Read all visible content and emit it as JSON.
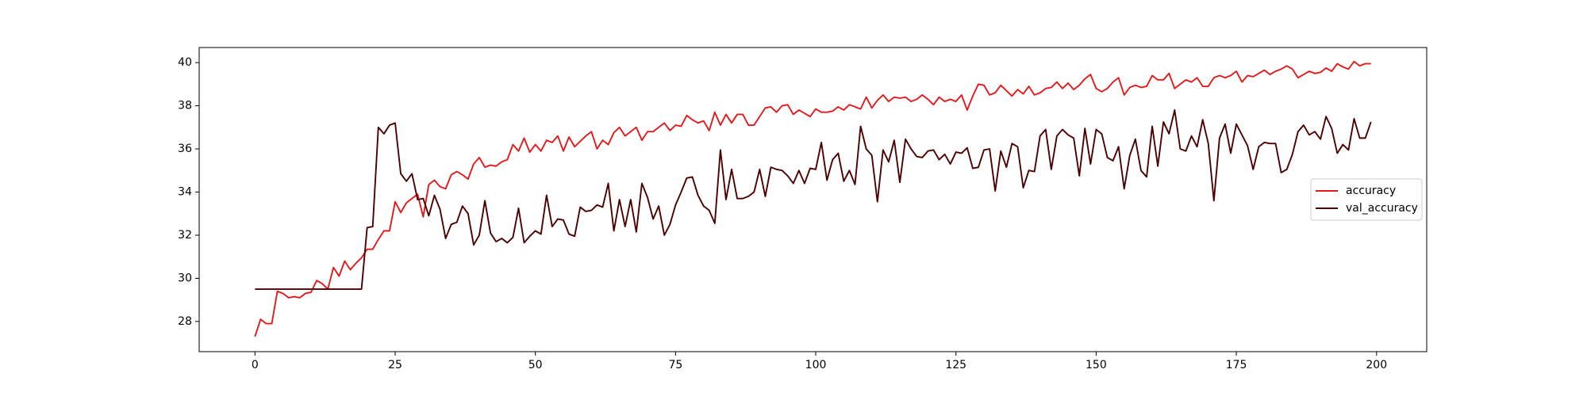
{
  "chart_data": {
    "type": "line",
    "x": [
      0,
      1,
      2,
      3,
      4,
      5,
      6,
      7,
      8,
      9,
      10,
      11,
      12,
      13,
      14,
      15,
      16,
      17,
      18,
      19,
      20,
      21,
      22,
      23,
      24,
      25,
      26,
      27,
      28,
      29,
      30,
      31,
      32,
      33,
      34,
      35,
      36,
      37,
      38,
      39,
      40,
      41,
      42,
      43,
      44,
      45,
      46,
      47,
      48,
      49,
      50,
      51,
      52,
      53,
      54,
      55,
      56,
      57,
      58,
      59,
      60,
      61,
      62,
      63,
      64,
      65,
      66,
      67,
      68,
      69,
      70,
      71,
      72,
      73,
      74,
      75,
      76,
      77,
      78,
      79,
      80,
      81,
      82,
      83,
      84,
      85,
      86,
      87,
      88,
      89,
      90,
      91,
      92,
      93,
      94,
      95,
      96,
      97,
      98,
      99,
      100,
      101,
      102,
      103,
      104,
      105,
      106,
      107,
      108,
      109,
      110,
      111,
      112,
      113,
      114,
      115,
      116,
      117,
      118,
      119,
      120,
      121,
      122,
      123,
      124,
      125,
      126,
      127,
      128,
      129,
      130,
      131,
      132,
      133,
      134,
      135,
      136,
      137,
      138,
      139,
      140,
      141,
      142,
      143,
      144,
      145,
      146,
      147,
      148,
      149,
      150,
      151,
      152,
      153,
      154,
      155,
      156,
      157,
      158,
      159,
      160,
      161,
      162,
      163,
      164,
      165,
      166,
      167,
      168,
      169,
      170,
      171,
      172,
      173,
      174,
      175,
      176,
      177,
      178,
      179,
      180,
      181,
      182,
      183,
      184,
      185,
      186,
      187,
      188,
      189,
      190,
      191,
      192,
      193,
      194,
      195,
      196,
      197,
      198,
      199
    ],
    "series": [
      {
        "name": "accuracy",
        "color": "#e31a1c",
        "values": [
          27.3,
          28.1,
          27.9,
          27.9,
          29.4,
          29.3,
          29.1,
          29.15,
          29.1,
          29.3,
          29.35,
          29.9,
          29.75,
          29.5,
          30.5,
          30.1,
          30.8,
          30.4,
          30.7,
          30.95,
          31.35,
          31.35,
          31.8,
          32.2,
          32.2,
          33.55,
          33.05,
          33.5,
          33.7,
          33.9,
          32.85,
          34.35,
          34.55,
          34.25,
          34.15,
          34.8,
          34.95,
          34.8,
          34.6,
          35.3,
          35.6,
          35.15,
          35.25,
          35.2,
          35.4,
          35.5,
          36.2,
          35.9,
          36.5,
          35.85,
          36.2,
          35.9,
          36.4,
          36.3,
          36.6,
          35.9,
          36.55,
          36.1,
          36.35,
          36.6,
          36.8,
          36.0,
          36.4,
          36.2,
          36.75,
          37.0,
          36.6,
          36.8,
          37.0,
          36.4,
          36.8,
          36.8,
          37.0,
          37.2,
          36.85,
          37.1,
          37.05,
          37.55,
          37.35,
          37.2,
          37.3,
          36.85,
          37.7,
          37.1,
          37.6,
          37.2,
          37.6,
          37.6,
          37.1,
          37.1,
          37.5,
          37.9,
          37.95,
          37.7,
          38.0,
          38.05,
          37.6,
          37.8,
          37.65,
          37.5,
          37.85,
          37.7,
          37.7,
          37.75,
          37.95,
          37.8,
          38.05,
          37.95,
          37.85,
          38.4,
          37.9,
          38.25,
          38.5,
          38.2,
          38.4,
          38.35,
          38.4,
          38.2,
          38.3,
          38.5,
          38.3,
          38.05,
          38.4,
          38.2,
          38.3,
          38.2,
          38.5,
          37.8,
          38.45,
          39.0,
          38.95,
          38.5,
          38.6,
          38.95,
          38.7,
          38.45,
          38.75,
          38.55,
          38.9,
          38.5,
          38.6,
          38.8,
          38.85,
          39.1,
          38.8,
          39.05,
          38.75,
          38.95,
          39.25,
          39.45,
          38.8,
          38.65,
          38.8,
          39.1,
          39.3,
          38.5,
          38.85,
          38.95,
          38.85,
          38.9,
          39.4,
          39.2,
          39.2,
          39.5,
          38.8,
          39.0,
          39.2,
          39.1,
          39.3,
          38.9,
          38.9,
          39.3,
          39.4,
          39.3,
          39.4,
          39.6,
          39.1,
          39.4,
          39.35,
          39.5,
          39.65,
          39.45,
          39.6,
          39.7,
          39.85,
          39.7,
          39.3,
          39.45,
          39.6,
          39.5,
          39.55,
          39.75,
          39.6,
          39.95,
          39.8,
          39.7,
          40.05,
          39.85,
          39.95,
          39.95
        ]
      },
      {
        "name": "val_accuracy",
        "color": "#4d0000",
        "values": [
          29.5,
          29.5,
          29.5,
          29.5,
          29.5,
          29.5,
          29.5,
          29.5,
          29.5,
          29.5,
          29.5,
          29.5,
          29.5,
          29.5,
          29.5,
          29.5,
          29.5,
          29.5,
          29.5,
          29.5,
          32.35,
          32.4,
          37.0,
          36.7,
          37.1,
          37.2,
          34.85,
          34.5,
          34.85,
          33.65,
          33.7,
          32.9,
          33.85,
          33.2,
          31.85,
          32.5,
          32.6,
          33.35,
          33.0,
          31.55,
          32.0,
          33.6,
          32.1,
          31.7,
          31.85,
          31.65,
          31.9,
          33.25,
          31.65,
          31.95,
          32.2,
          32.05,
          33.85,
          32.4,
          32.75,
          32.7,
          32.05,
          31.95,
          33.3,
          33.1,
          33.15,
          33.4,
          33.3,
          34.4,
          32.2,
          33.65,
          32.4,
          33.65,
          32.15,
          34.4,
          33.75,
          32.75,
          33.35,
          32.0,
          32.5,
          33.4,
          34.0,
          34.65,
          34.7,
          33.85,
          33.35,
          33.15,
          32.55,
          35.95,
          33.65,
          35.05,
          33.7,
          33.7,
          33.8,
          34.0,
          35.05,
          33.8,
          35.15,
          35.05,
          35.0,
          34.75,
          34.4,
          35.0,
          34.4,
          35.1,
          35.05,
          36.3,
          34.55,
          35.5,
          35.8,
          34.5,
          35.0,
          34.35,
          37.05,
          36.0,
          35.7,
          33.55,
          35.95,
          35.4,
          36.4,
          34.45,
          36.45,
          36.0,
          35.65,
          35.6,
          35.9,
          35.95,
          35.5,
          35.75,
          35.3,
          35.85,
          35.8,
          36.05,
          35.1,
          35.15,
          35.95,
          36.0,
          34.05,
          35.9,
          35.15,
          36.25,
          36.1,
          34.2,
          35.0,
          34.95,
          36.6,
          36.9,
          35.05,
          36.6,
          36.9,
          36.65,
          36.5,
          34.75,
          36.95,
          35.3,
          36.9,
          36.7,
          35.6,
          35.45,
          36.1,
          34.15,
          35.7,
          36.45,
          35.0,
          34.7,
          37.05,
          35.2,
          37.25,
          36.7,
          37.8,
          36.0,
          35.9,
          36.6,
          36.1,
          37.35,
          36.25,
          33.6,
          36.5,
          37.15,
          35.8,
          37.15,
          36.65,
          36.15,
          35.05,
          36.1,
          36.3,
          36.25,
          36.25,
          34.9,
          35.05,
          35.75,
          36.8,
          37.1,
          36.65,
          36.8,
          36.45,
          37.5,
          36.95,
          35.8,
          36.2,
          35.95,
          37.4,
          36.5,
          36.5,
          37.25
        ]
      }
    ],
    "xlim": [
      -9.95,
      208.95
    ],
    "xticks": [
      0,
      25,
      50,
      75,
      100,
      125,
      150,
      175,
      200
    ],
    "ylim": [
      26.6,
      40.7
    ],
    "yticks": [
      28,
      30,
      32,
      34,
      36,
      38,
      40
    ],
    "grid": false,
    "legend": "center right"
  }
}
